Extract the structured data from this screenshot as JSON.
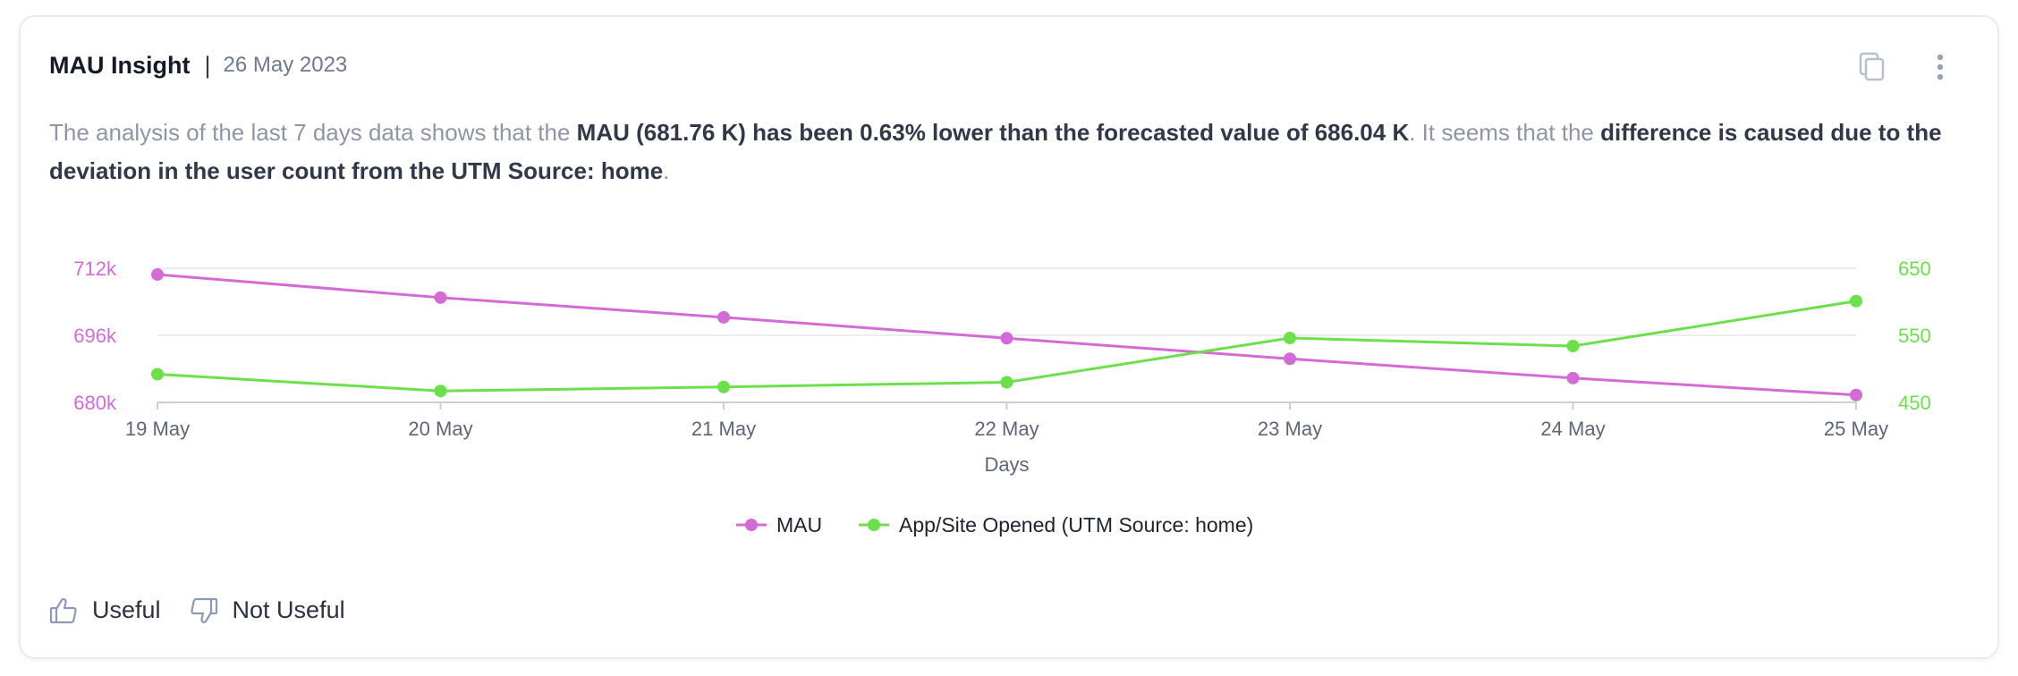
{
  "card": {
    "title": "MAU Insight",
    "separator": "|",
    "date": "26 May 2023",
    "icons": {
      "copy": "copy-icon",
      "more": "more-vertical-icon"
    }
  },
  "summary": {
    "p1": "The analysis of the last 7 days data shows that the ",
    "b1": "MAU (681.76 K) has been 0.63% lower than the forecasted value of 686.04 K",
    "p2": ". It seems that the ",
    "b2": "difference is caused due to the deviation in the user count from the UTM Source: home",
    "p3": "."
  },
  "chart_data": {
    "type": "line",
    "title": "",
    "xlabel": "Days",
    "x": [
      "19 May",
      "20 May",
      "21 May",
      "22 May",
      "23 May",
      "24 May",
      "25 May"
    ],
    "y_left": {
      "ylim": [
        680000,
        712000
      ],
      "ticks": [
        680000,
        696000,
        712000
      ],
      "tick_labels": [
        "680k",
        "696k",
        "712k"
      ],
      "color": "#d36bd6"
    },
    "y_right": {
      "ylim": [
        450,
        650
      ],
      "ticks": [
        450,
        550,
        650
      ],
      "tick_labels": [
        "450",
        "550",
        "650"
      ],
      "color": "#6be04a"
    },
    "series": [
      {
        "name": "MAU",
        "axis": "left",
        "color": "#d36bd6",
        "values": [
          710500,
          705000,
          700300,
          695300,
          690400,
          685800,
          681760
        ]
      },
      {
        "name": "App/Site Opened (UTM Source: home)",
        "axis": "right",
        "color": "#6be04a",
        "values": [
          492,
          467,
          473,
          480,
          546,
          534,
          601
        ]
      }
    ],
    "grid": true,
    "legend": "bottom-center"
  },
  "feedback": {
    "useful_label": "Useful",
    "not_useful_label": "Not Useful"
  }
}
